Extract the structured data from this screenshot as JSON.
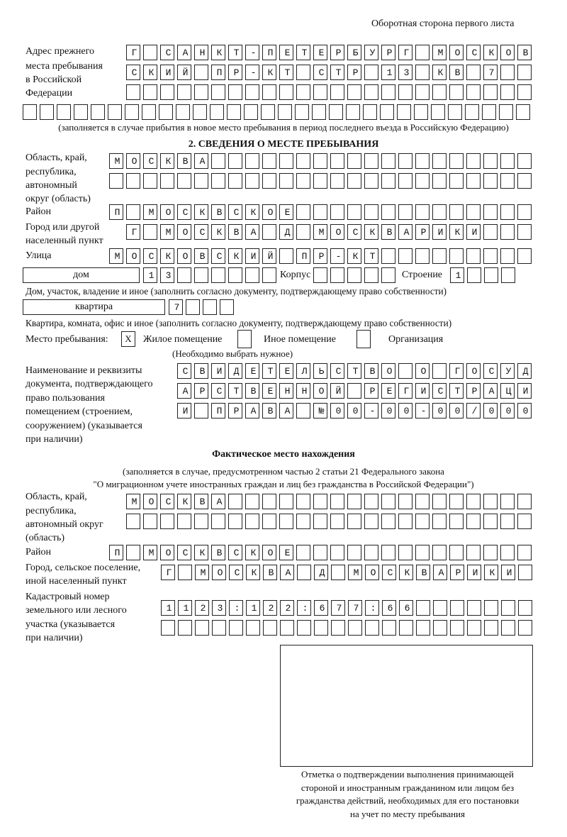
{
  "header": "Оборотная сторона первого листа",
  "prev_address": {
    "label": [
      "Адрес прежнего",
      "места пребывания",
      "в Российской",
      "Федерации"
    ],
    "rows": [
      "Г САНКТ-ПЕТЕРБУРГ МОСКОВ",
      "СКИЙ ПР-КТ СТР 13 КВ 7",
      "",
      ""
    ],
    "note": "(заполняется в случае прибытия в новое место пребывания в период последнего въезда в Российскую Федерацию)"
  },
  "section2": {
    "title": "2. СВЕДЕНИЯ О МЕСТЕ ПРЕБЫВАНИЯ",
    "region_label": [
      "Область, край,",
      "республика,",
      "автономный",
      "округ (область)"
    ],
    "region_rows": [
      "МОСКВА",
      ""
    ],
    "district_label": "Район",
    "district": "П МОСКВСКОЕ",
    "city_label": [
      "Город или другой",
      "населенный пункт"
    ],
    "city": "Г МОСКВА Д МОСКВАРИКИ",
    "street_label": "Улица",
    "street": "МОСКОВСКИЙ ПР-КТ",
    "house_type": "дом",
    "house": "13",
    "korpus_label": "Корпус",
    "korpus": "",
    "stroenie_label": "Строение",
    "stroenie": "1",
    "house_note": "Дом, участок, владение и иное (заполнить согласно документу, подтверждающему право собственности)",
    "apt_type": "квартира",
    "apt": "7",
    "apt_note": "Квартира, комната, офис и иное (заполнить согласно документу, подтверждающему право собственности)",
    "stay_label": "Место пребывания:",
    "stay_options": [
      {
        "label": "Жилое помещение",
        "mark": "Х"
      },
      {
        "label": "Иное помещение",
        "mark": ""
      },
      {
        "label": "Организация",
        "mark": ""
      }
    ],
    "stay_note": "(Необходимо выбрать нужное)",
    "doc_label": [
      "Наименование и реквизиты",
      "документа, подтверждающего",
      "право пользования",
      "помещением (строением,",
      "сооружением) (указывается",
      "при наличии)"
    ],
    "doc_rows": [
      "СВИДЕТЕЛЬСТВО О ГОСУД",
      "АРСТВЕННОЙ РЕГИСТРАЦИ",
      "И ПРАВА №00-00-00/000"
    ]
  },
  "actual": {
    "title": "Фактическое место нахождения",
    "note": [
      "(заполняется в случае, предусмотренном частью 2 статьи 21 Федерального закона",
      "\"О миграционном учете иностранных граждан и лиц без гражданства в Российской Федерации\")"
    ],
    "region_label": [
      "Область, край,",
      "республика,",
      "автономный округ",
      "(область)"
    ],
    "region_rows": [
      "МОСКВА",
      ""
    ],
    "district_label": "Район",
    "district": "П МОСКВСКОЕ",
    "city_label": [
      "Город, сельское поселение,",
      "иной населенный пункт"
    ],
    "city": "Г МОСКВА Д МОСКВАРИКИ",
    "cadastre_label": [
      "Кадастровый номер",
      "земельного или лесного",
      "участка (указывается",
      "при наличии)"
    ],
    "cadastre_rows": [
      "1123:122:677:66",
      ""
    ]
  },
  "confirmation": {
    "caption": [
      "Отметка о подтверждении выполнения принимающей",
      "стороной и иностранным гражданином или лицом без",
      "гражданства действий, необходимых для его постановки",
      "на учет по месту пребывания"
    ]
  }
}
